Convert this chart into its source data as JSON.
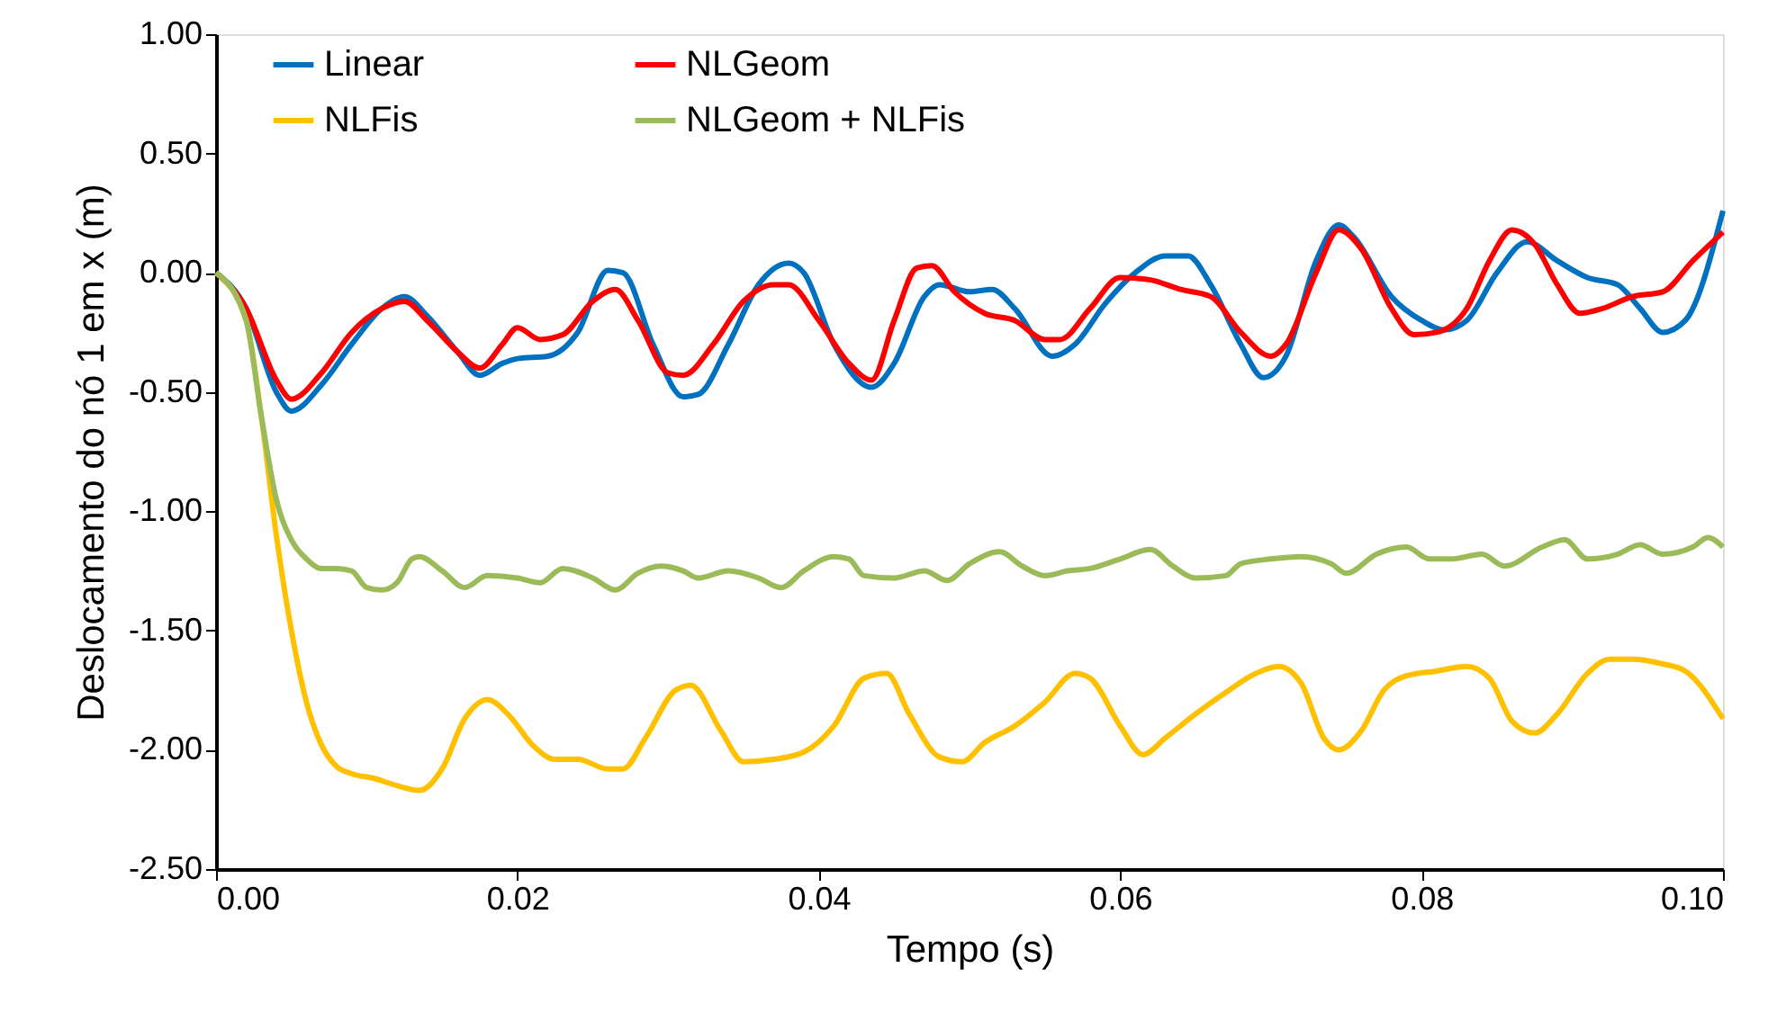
{
  "chart_data": {
    "type": "line",
    "xlabel": "Tempo (s)",
    "ylabel": "Deslocamento do nó 1 em x (m)",
    "xlim": [
      0,
      0.1
    ],
    "xticks": [
      {
        "value": 0,
        "label": "0.00"
      },
      {
        "value": 0.02,
        "label": "0.02"
      },
      {
        "value": 0.04,
        "label": "0.04"
      },
      {
        "value": 0.06,
        "label": "0.06"
      },
      {
        "value": 0.08,
        "label": "0.08"
      },
      {
        "value": 0.1,
        "label": "0.10"
      }
    ],
    "ylim": [
      -2.5,
      1
    ],
    "yticks": [
      {
        "value": -2.5,
        "label": "-2.50"
      },
      {
        "value": -2,
        "label": "-2.00"
      },
      {
        "value": -1.5,
        "label": "-1.50"
      },
      {
        "value": -1,
        "label": "-1.00"
      },
      {
        "value": -0.5,
        "label": "-0.50"
      },
      {
        "value": 0,
        "label": "0.00"
      },
      {
        "value": 0.5,
        "label": "0.50"
      },
      {
        "value": 1,
        "label": "1.00"
      }
    ],
    "grid": false,
    "legend": "top",
    "marker": "none",
    "line_style": "solid",
    "series": [
      {
        "name": "Linear",
        "color": "#0070c0",
        "x": [
          0,
          0.002,
          0.004,
          0.005,
          0.007,
          0.009,
          0.011,
          0.0125,
          0.014,
          0.016,
          0.0175,
          0.019,
          0.02,
          0.022,
          0.024,
          0.026,
          0.027,
          0.029,
          0.031,
          0.032,
          0.034,
          0.036,
          0.038,
          0.039,
          0.041,
          0.0435,
          0.045,
          0.047,
          0.048,
          0.05,
          0.0515,
          0.053,
          0.0555,
          0.057,
          0.059,
          0.061,
          0.063,
          0.0645,
          0.066,
          0.068,
          0.0695,
          0.071,
          0.073,
          0.0745,
          0.0755,
          0.078,
          0.08,
          0.0815,
          0.083,
          0.085,
          0.087,
          0.089,
          0.091,
          0.093,
          0.0945,
          0.096,
          0.0975,
          0.1
        ],
        "values": [
          0,
          -0.15,
          -0.5,
          -0.58,
          -0.47,
          -0.3,
          -0.15,
          -0.1,
          -0.18,
          -0.33,
          -0.43,
          -0.38,
          -0.36,
          -0.35,
          -0.25,
          0.01,
          0.0,
          -0.3,
          -0.52,
          -0.51,
          -0.3,
          -0.05,
          0.04,
          0.0,
          -0.3,
          -0.48,
          -0.38,
          -0.1,
          -0.05,
          -0.08,
          -0.07,
          -0.15,
          -0.35,
          -0.3,
          -0.13,
          0.0,
          0.07,
          0.07,
          -0.05,
          -0.3,
          -0.44,
          -0.35,
          0.05,
          0.2,
          0.15,
          -0.1,
          -0.2,
          -0.24,
          -0.2,
          0.0,
          0.13,
          0.05,
          -0.02,
          -0.05,
          -0.15,
          -0.25,
          -0.2,
          0.26
        ]
      },
      {
        "name": "NLGeom",
        "color": "#ff0000",
        "x": [
          0,
          0.002,
          0.004,
          0.005,
          0.007,
          0.009,
          0.011,
          0.0125,
          0.014,
          0.016,
          0.0175,
          0.019,
          0.02,
          0.0215,
          0.023,
          0.025,
          0.0265,
          0.028,
          0.03,
          0.031,
          0.033,
          0.035,
          0.037,
          0.038,
          0.04,
          0.042,
          0.0435,
          0.045,
          0.0465,
          0.0475,
          0.049,
          0.051,
          0.053,
          0.055,
          0.056,
          0.058,
          0.06,
          0.062,
          0.064,
          0.066,
          0.068,
          0.07,
          0.071,
          0.073,
          0.0745,
          0.076,
          0.078,
          0.0795,
          0.081,
          0.083,
          0.0845,
          0.086,
          0.0875,
          0.089,
          0.0905,
          0.092,
          0.094,
          0.096,
          0.098,
          0.1
        ],
        "values": [
          0,
          -0.15,
          -0.45,
          -0.53,
          -0.42,
          -0.25,
          -0.15,
          -0.12,
          -0.2,
          -0.33,
          -0.4,
          -0.3,
          -0.23,
          -0.28,
          -0.26,
          -0.12,
          -0.07,
          -0.2,
          -0.42,
          -0.43,
          -0.3,
          -0.12,
          -0.05,
          -0.05,
          -0.2,
          -0.38,
          -0.45,
          -0.2,
          0.02,
          0.03,
          -0.08,
          -0.17,
          -0.2,
          -0.28,
          -0.28,
          -0.15,
          -0.02,
          -0.03,
          -0.07,
          -0.1,
          -0.25,
          -0.35,
          -0.3,
          0.0,
          0.18,
          0.1,
          -0.15,
          -0.26,
          -0.25,
          -0.15,
          0.05,
          0.18,
          0.12,
          -0.05,
          -0.17,
          -0.15,
          -0.1,
          -0.08,
          0.05,
          0.17
        ]
      },
      {
        "name": "NLFis",
        "color": "#ffc000",
        "x": [
          0,
          0.002,
          0.003,
          0.004,
          0.005,
          0.006,
          0.007,
          0.008,
          0.009,
          0.0105,
          0.012,
          0.0135,
          0.015,
          0.0165,
          0.018,
          0.0195,
          0.021,
          0.0225,
          0.024,
          0.026,
          0.027,
          0.0285,
          0.0305,
          0.0315,
          0.0335,
          0.035,
          0.037,
          0.039,
          0.041,
          0.043,
          0.0445,
          0.046,
          0.048,
          0.0495,
          0.051,
          0.053,
          0.055,
          0.057,
          0.058,
          0.06,
          0.0615,
          0.063,
          0.065,
          0.067,
          0.069,
          0.0705,
          0.072,
          0.0735,
          0.0745,
          0.076,
          0.0775,
          0.079,
          0.081,
          0.083,
          0.0845,
          0.086,
          0.0875,
          0.089,
          0.091,
          0.0925,
          0.094,
          0.096,
          0.0975,
          0.1
        ],
        "values": [
          0,
          -0.2,
          -0.6,
          -1.1,
          -1.5,
          -1.8,
          -1.98,
          -2.07,
          -2.1,
          -2.12,
          -2.15,
          -2.17,
          -2.08,
          -1.87,
          -1.79,
          -1.86,
          -1.98,
          -2.04,
          -2.04,
          -2.08,
          -2.08,
          -1.95,
          -1.75,
          -1.73,
          -1.92,
          -2.05,
          -2.04,
          -2.01,
          -1.9,
          -1.7,
          -1.68,
          -1.85,
          -2.03,
          -2.05,
          -1.97,
          -1.9,
          -1.8,
          -1.68,
          -1.7,
          -1.9,
          -2.02,
          -1.95,
          -1.85,
          -1.76,
          -1.68,
          -1.65,
          -1.72,
          -1.95,
          -2.0,
          -1.92,
          -1.75,
          -1.69,
          -1.67,
          -1.65,
          -1.7,
          -1.88,
          -1.93,
          -1.85,
          -1.68,
          -1.62,
          -1.62,
          -1.64,
          -1.67,
          -1.87
        ]
      },
      {
        "name": "NLGeom + NLFis",
        "color": "#9bbb59",
        "x": [
          0,
          0.002,
          0.003,
          0.004,
          0.005,
          0.006,
          0.007,
          0.008,
          0.009,
          0.01,
          0.011,
          0.012,
          0.013,
          0.0135,
          0.015,
          0.0165,
          0.018,
          0.02,
          0.0215,
          0.023,
          0.025,
          0.0265,
          0.028,
          0.0295,
          0.031,
          0.032,
          0.034,
          0.036,
          0.0375,
          0.039,
          0.041,
          0.042,
          0.043,
          0.045,
          0.047,
          0.0485,
          0.05,
          0.052,
          0.0535,
          0.055,
          0.0565,
          0.058,
          0.06,
          0.062,
          0.0635,
          0.065,
          0.067,
          0.068,
          0.07,
          0.072,
          0.074,
          0.075,
          0.077,
          0.079,
          0.0805,
          0.082,
          0.084,
          0.0855,
          0.088,
          0.0895,
          0.091,
          0.093,
          0.0945,
          0.096,
          0.098,
          0.099,
          0.1
        ],
        "values": [
          0,
          -0.2,
          -0.6,
          -0.95,
          -1.12,
          -1.2,
          -1.24,
          -1.24,
          -1.25,
          -1.32,
          -1.33,
          -1.3,
          -1.2,
          -1.19,
          -1.25,
          -1.32,
          -1.27,
          -1.28,
          -1.3,
          -1.24,
          -1.28,
          -1.33,
          -1.26,
          -1.23,
          -1.25,
          -1.28,
          -1.25,
          -1.28,
          -1.32,
          -1.25,
          -1.19,
          -1.2,
          -1.27,
          -1.28,
          -1.25,
          -1.29,
          -1.22,
          -1.17,
          -1.23,
          -1.27,
          -1.25,
          -1.24,
          -1.2,
          -1.16,
          -1.23,
          -1.28,
          -1.27,
          -1.22,
          -1.2,
          -1.19,
          -1.22,
          -1.26,
          -1.18,
          -1.15,
          -1.2,
          -1.2,
          -1.18,
          -1.23,
          -1.15,
          -1.12,
          -1.2,
          -1.18,
          -1.14,
          -1.18,
          -1.15,
          -1.11,
          -1.15
        ]
      }
    ]
  }
}
